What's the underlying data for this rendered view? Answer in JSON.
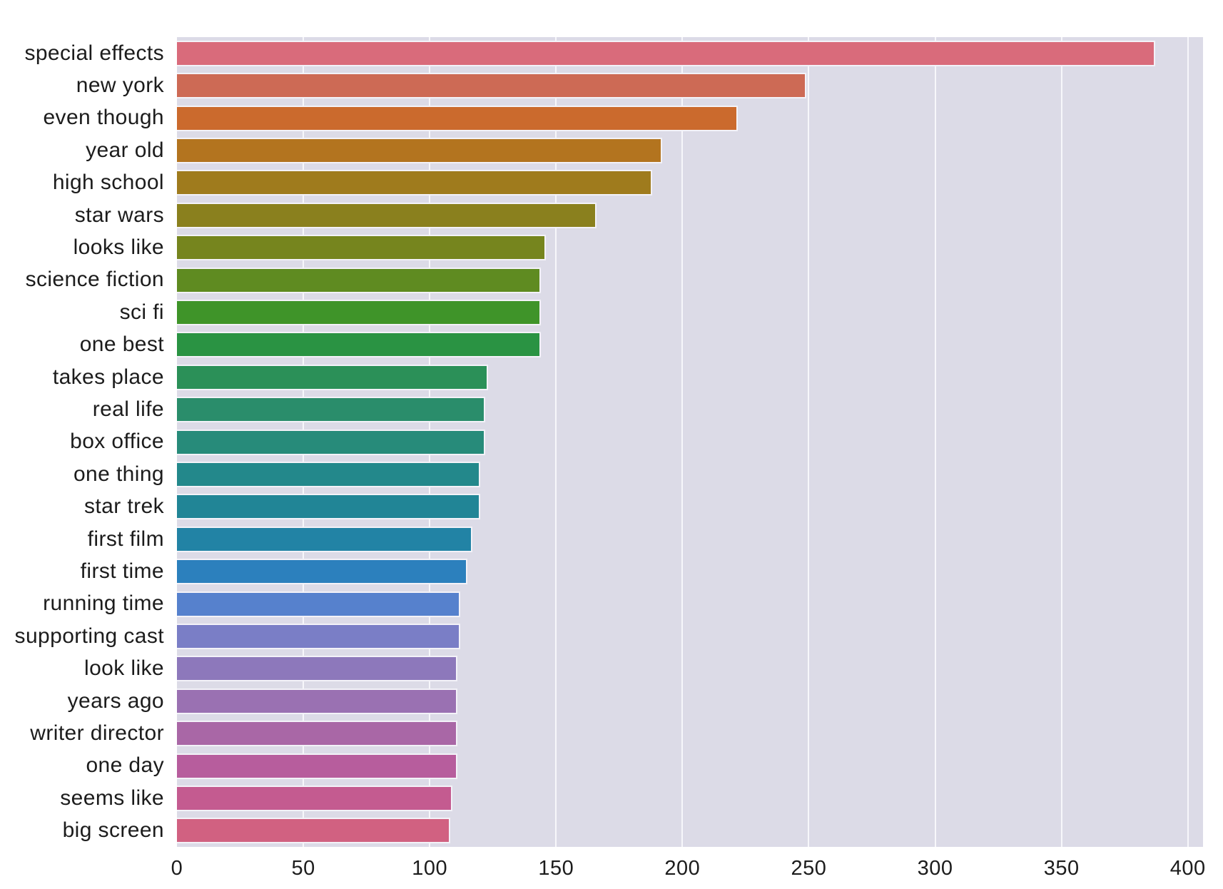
{
  "chart_data": {
    "type": "bar",
    "orientation": "horizontal",
    "title": "",
    "xlabel": "",
    "ylabel": "",
    "categories": [
      "special effects",
      "new york",
      "even though",
      "year old",
      "high school",
      "star wars",
      "looks like",
      "science fiction",
      "sci fi",
      "one best",
      "takes place",
      "real life",
      "box office",
      "one thing",
      "star trek",
      "first film",
      "first time",
      "running time",
      "supporting cast",
      "look like",
      "years ago",
      "writer director",
      "one day",
      "seems like",
      "big screen"
    ],
    "values": [
      387,
      249,
      222,
      192,
      188,
      166,
      146,
      144,
      144,
      144,
      123,
      122,
      122,
      120,
      120,
      117,
      115,
      112,
      112,
      111,
      111,
      111,
      111,
      109,
      108
    ],
    "bar_colors": [
      "#d96b7b",
      "#cd6a55",
      "#cb6a2d",
      "#b3741f",
      "#9f7b1d",
      "#8a801e",
      "#76851e",
      "#5f8b21",
      "#3f9429",
      "#2a9343",
      "#2b9058",
      "#2a8d6b",
      "#278b7a",
      "#23888b",
      "#218596",
      "#2283a5",
      "#2c80bd",
      "#5681cd",
      "#7a7ec6",
      "#8d78bb",
      "#9a71b2",
      "#a967a6",
      "#b75d9d",
      "#c45b90",
      "#d16181"
    ],
    "x_ticks": [
      0,
      50,
      100,
      150,
      200,
      250,
      300,
      350,
      400
    ],
    "xlim": [
      0,
      406
    ],
    "grid": true,
    "legend": false,
    "style": {
      "figure_bg": "#ffffff",
      "plot_bg": "#dcdbe7",
      "grid_color": "#f7f7fb",
      "bar_edge_color": "#f3f2f8",
      "text_color": "#1c1c1c"
    }
  }
}
